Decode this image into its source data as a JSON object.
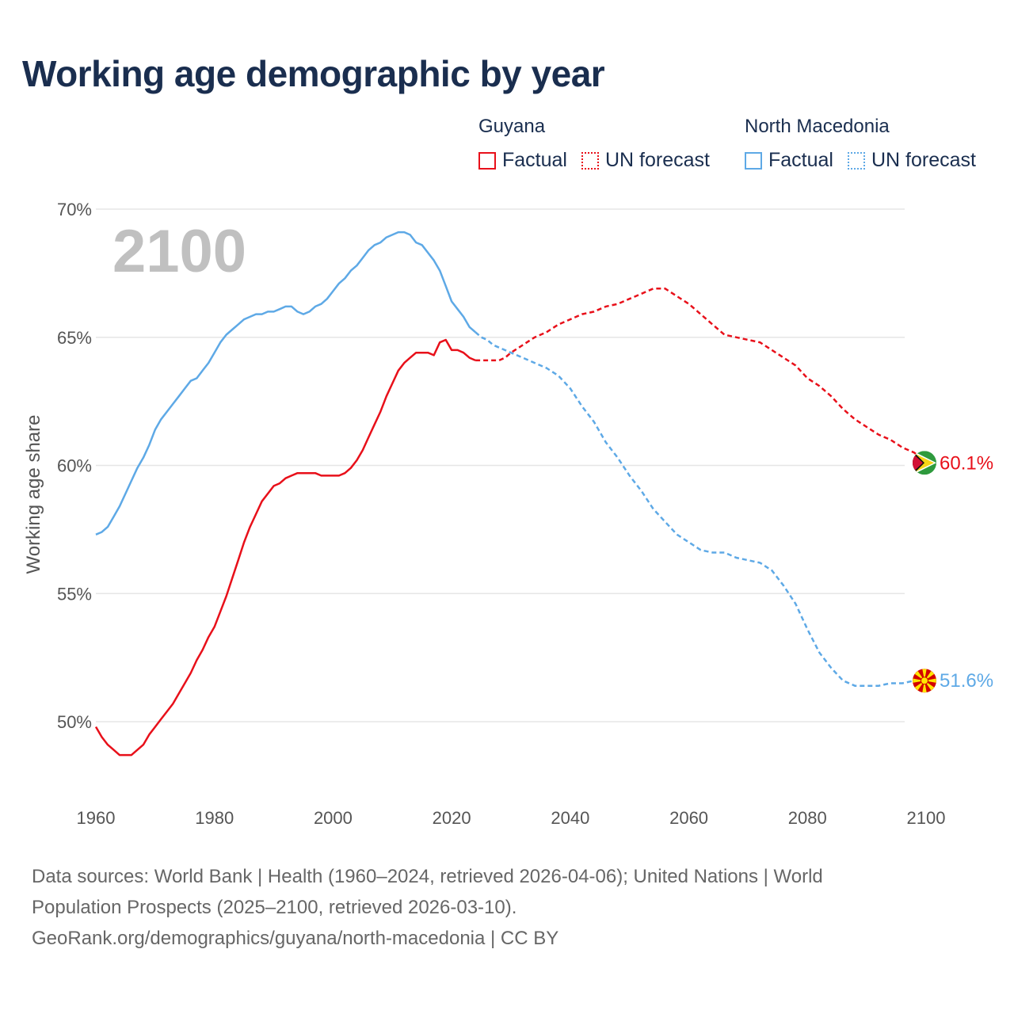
{
  "title": "Working age demographic by year",
  "legend": {
    "groups": [
      {
        "name": "Guyana",
        "color": "#e8101a",
        "factual_label": "Factual",
        "forecast_label": "UN forecast"
      },
      {
        "name": "North Macedonia",
        "color": "#5ea9e6",
        "factual_label": "Factual",
        "forecast_label": "UN forecast"
      }
    ]
  },
  "sources": {
    "line1": "Data sources: World Bank | Health (1960–2024, retrieved 2026-04-06); United Nations | World",
    "line2": "Population Prospects (2025–2100, retrieved 2026-03-10).",
    "line3": "GeoRank.org/demographics/guyana/north-macedonia | CC BY"
  },
  "chart_data": {
    "type": "line",
    "title": "Working age demographic by year",
    "ylabel": "Working age share",
    "xlabel": "",
    "watermark_year": "2100",
    "xlim": [
      1960,
      2100
    ],
    "ylim": [
      47,
      70
    ],
    "xticks": [
      1960,
      1980,
      2000,
      2020,
      2040,
      2060,
      2080,
      2100
    ],
    "yticks": [
      50,
      55,
      60,
      65,
      70
    ],
    "ytick_labels": [
      "50%",
      "55%",
      "60%",
      "65%",
      "70%"
    ],
    "series": [
      {
        "name": "Guyana",
        "color": "#e8101a",
        "factual_end_year": 2024,
        "end_label": "60.1%",
        "flag": "guyana-flag",
        "points": [
          [
            1960,
            49.8
          ],
          [
            1961,
            49.4
          ],
          [
            1962,
            49.1
          ],
          [
            1963,
            48.9
          ],
          [
            1964,
            48.7
          ],
          [
            1965,
            48.7
          ],
          [
            1966,
            48.7
          ],
          [
            1967,
            48.9
          ],
          [
            1968,
            49.1
          ],
          [
            1969,
            49.5
          ],
          [
            1970,
            49.8
          ],
          [
            1971,
            50.1
          ],
          [
            1972,
            50.4
          ],
          [
            1973,
            50.7
          ],
          [
            1974,
            51.1
          ],
          [
            1975,
            51.5
          ],
          [
            1976,
            51.9
          ],
          [
            1977,
            52.4
          ],
          [
            1978,
            52.8
          ],
          [
            1979,
            53.3
          ],
          [
            1980,
            53.7
          ],
          [
            1981,
            54.3
          ],
          [
            1982,
            54.9
          ],
          [
            1983,
            55.6
          ],
          [
            1984,
            56.3
          ],
          [
            1985,
            57.0
          ],
          [
            1986,
            57.6
          ],
          [
            1987,
            58.1
          ],
          [
            1988,
            58.6
          ],
          [
            1989,
            58.9
          ],
          [
            1990,
            59.2
          ],
          [
            1991,
            59.3
          ],
          [
            1992,
            59.5
          ],
          [
            1993,
            59.6
          ],
          [
            1994,
            59.7
          ],
          [
            1995,
            59.7
          ],
          [
            1996,
            59.7
          ],
          [
            1997,
            59.7
          ],
          [
            1998,
            59.6
          ],
          [
            1999,
            59.6
          ],
          [
            2000,
            59.6
          ],
          [
            2001,
            59.6
          ],
          [
            2002,
            59.7
          ],
          [
            2003,
            59.9
          ],
          [
            2004,
            60.2
          ],
          [
            2005,
            60.6
          ],
          [
            2006,
            61.1
          ],
          [
            2007,
            61.6
          ],
          [
            2008,
            62.1
          ],
          [
            2009,
            62.7
          ],
          [
            2010,
            63.2
          ],
          [
            2011,
            63.7
          ],
          [
            2012,
            64.0
          ],
          [
            2013,
            64.2
          ],
          [
            2014,
            64.4
          ],
          [
            2015,
            64.4
          ],
          [
            2016,
            64.4
          ],
          [
            2017,
            64.3
          ],
          [
            2018,
            64.8
          ],
          [
            2019,
            64.9
          ],
          [
            2020,
            64.5
          ],
          [
            2021,
            64.5
          ],
          [
            2022,
            64.4
          ],
          [
            2023,
            64.2
          ],
          [
            2024,
            64.1
          ],
          [
            2025,
            64.1
          ],
          [
            2026,
            64.1
          ],
          [
            2027,
            64.1
          ],
          [
            2028,
            64.1
          ],
          [
            2029,
            64.2
          ],
          [
            2030,
            64.4
          ],
          [
            2032,
            64.7
          ],
          [
            2034,
            65.0
          ],
          [
            2036,
            65.2
          ],
          [
            2038,
            65.5
          ],
          [
            2040,
            65.7
          ],
          [
            2042,
            65.9
          ],
          [
            2044,
            66.0
          ],
          [
            2046,
            66.2
          ],
          [
            2048,
            66.3
          ],
          [
            2050,
            66.5
          ],
          [
            2052,
            66.7
          ],
          [
            2054,
            66.9
          ],
          [
            2056,
            66.9
          ],
          [
            2058,
            66.6
          ],
          [
            2060,
            66.3
          ],
          [
            2062,
            65.9
          ],
          [
            2064,
            65.5
          ],
          [
            2066,
            65.1
          ],
          [
            2068,
            65.0
          ],
          [
            2070,
            64.9
          ],
          [
            2072,
            64.8
          ],
          [
            2074,
            64.5
          ],
          [
            2076,
            64.2
          ],
          [
            2078,
            63.9
          ],
          [
            2080,
            63.4
          ],
          [
            2082,
            63.1
          ],
          [
            2084,
            62.7
          ],
          [
            2086,
            62.2
          ],
          [
            2088,
            61.8
          ],
          [
            2090,
            61.5
          ],
          [
            2092,
            61.2
          ],
          [
            2094,
            61.0
          ],
          [
            2096,
            60.7
          ],
          [
            2098,
            60.5
          ],
          [
            2100,
            60.1
          ]
        ]
      },
      {
        "name": "North Macedonia",
        "color": "#5ea9e6",
        "factual_end_year": 2024,
        "end_label": "51.6%",
        "flag": "north-macedonia-flag",
        "points": [
          [
            1960,
            57.3
          ],
          [
            1961,
            57.4
          ],
          [
            1962,
            57.6
          ],
          [
            1963,
            58.0
          ],
          [
            1964,
            58.4
          ],
          [
            1965,
            58.9
          ],
          [
            1966,
            59.4
          ],
          [
            1967,
            59.9
          ],
          [
            1968,
            60.3
          ],
          [
            1969,
            60.8
          ],
          [
            1970,
            61.4
          ],
          [
            1971,
            61.8
          ],
          [
            1972,
            62.1
          ],
          [
            1973,
            62.4
          ],
          [
            1974,
            62.7
          ],
          [
            1975,
            63.0
          ],
          [
            1976,
            63.3
          ],
          [
            1977,
            63.4
          ],
          [
            1978,
            63.7
          ],
          [
            1979,
            64.0
          ],
          [
            1980,
            64.4
          ],
          [
            1981,
            64.8
          ],
          [
            1982,
            65.1
          ],
          [
            1983,
            65.3
          ],
          [
            1984,
            65.5
          ],
          [
            1985,
            65.7
          ],
          [
            1986,
            65.8
          ],
          [
            1987,
            65.9
          ],
          [
            1988,
            65.9
          ],
          [
            1989,
            66.0
          ],
          [
            1990,
            66.0
          ],
          [
            1991,
            66.1
          ],
          [
            1992,
            66.2
          ],
          [
            1993,
            66.2
          ],
          [
            1994,
            66.0
          ],
          [
            1995,
            65.9
          ],
          [
            1996,
            66.0
          ],
          [
            1997,
            66.2
          ],
          [
            1998,
            66.3
          ],
          [
            1999,
            66.5
          ],
          [
            2000,
            66.8
          ],
          [
            2001,
            67.1
          ],
          [
            2002,
            67.3
          ],
          [
            2003,
            67.6
          ],
          [
            2004,
            67.8
          ],
          [
            2005,
            68.1
          ],
          [
            2006,
            68.4
          ],
          [
            2007,
            68.6
          ],
          [
            2008,
            68.7
          ],
          [
            2009,
            68.9
          ],
          [
            2010,
            69.0
          ],
          [
            2011,
            69.1
          ],
          [
            2012,
            69.1
          ],
          [
            2013,
            69.0
          ],
          [
            2014,
            68.7
          ],
          [
            2015,
            68.6
          ],
          [
            2016,
            68.3
          ],
          [
            2017,
            68.0
          ],
          [
            2018,
            67.6
          ],
          [
            2019,
            67.0
          ],
          [
            2020,
            66.4
          ],
          [
            2021,
            66.1
          ],
          [
            2022,
            65.8
          ],
          [
            2023,
            65.4
          ],
          [
            2024,
            65.2
          ],
          [
            2025,
            65.0
          ],
          [
            2026,
            64.9
          ],
          [
            2027,
            64.7
          ],
          [
            2028,
            64.6
          ],
          [
            2030,
            64.4
          ],
          [
            2032,
            64.2
          ],
          [
            2034,
            64.0
          ],
          [
            2036,
            63.8
          ],
          [
            2038,
            63.5
          ],
          [
            2040,
            63.0
          ],
          [
            2042,
            62.3
          ],
          [
            2044,
            61.7
          ],
          [
            2046,
            60.9
          ],
          [
            2048,
            60.3
          ],
          [
            2050,
            59.6
          ],
          [
            2052,
            59.0
          ],
          [
            2054,
            58.3
          ],
          [
            2056,
            57.8
          ],
          [
            2058,
            57.3
          ],
          [
            2060,
            57.0
          ],
          [
            2062,
            56.7
          ],
          [
            2064,
            56.6
          ],
          [
            2066,
            56.6
          ],
          [
            2068,
            56.4
          ],
          [
            2070,
            56.3
          ],
          [
            2072,
            56.2
          ],
          [
            2074,
            55.9
          ],
          [
            2076,
            55.3
          ],
          [
            2078,
            54.6
          ],
          [
            2080,
            53.6
          ],
          [
            2082,
            52.7
          ],
          [
            2084,
            52.1
          ],
          [
            2086,
            51.6
          ],
          [
            2088,
            51.4
          ],
          [
            2090,
            51.4
          ],
          [
            2092,
            51.4
          ],
          [
            2094,
            51.5
          ],
          [
            2096,
            51.5
          ],
          [
            2098,
            51.6
          ],
          [
            2100,
            51.6
          ]
        ]
      }
    ]
  }
}
